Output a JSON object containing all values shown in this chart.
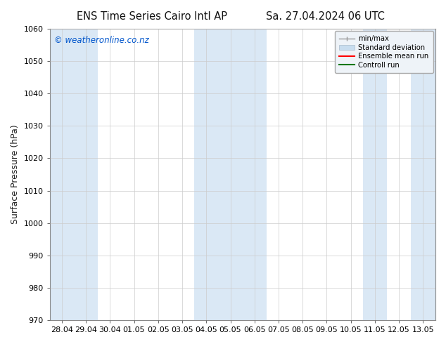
{
  "title_left": "ENS Time Series Cairo Intl AP",
  "title_right": "Sa. 27.04.2024 06 UTC",
  "ylabel": "Surface Pressure (hPa)",
  "ylim": [
    970,
    1060
  ],
  "yticks": [
    970,
    980,
    990,
    1000,
    1010,
    1020,
    1030,
    1040,
    1050,
    1060
  ],
  "x_labels": [
    "28.04",
    "29.04",
    "30.04",
    "01.05",
    "02.05",
    "03.05",
    "04.05",
    "05.05",
    "06.05",
    "07.05",
    "08.05",
    "09.05",
    "10.05",
    "11.05",
    "12.05",
    "13.05"
  ],
  "watermark": "© weatheronline.co.nz",
  "watermark_color": "#0055cc",
  "bg_color": "#ffffff",
  "plot_bg_color": "#ffffff",
  "shaded_band_color": "#dae8f5",
  "legend_entries": [
    "min/max",
    "Standard deviation",
    "Ensemble mean run",
    "Controll run"
  ],
  "legend_colors_line": [
    "#999999",
    "#aabbcc",
    "#ff0000",
    "#007700"
  ],
  "shaded_indices": [
    0,
    1,
    6,
    7,
    8,
    13,
    15
  ],
  "title_fontsize": 10.5,
  "label_fontsize": 9,
  "tick_fontsize": 8,
  "watermark_fontsize": 8.5
}
